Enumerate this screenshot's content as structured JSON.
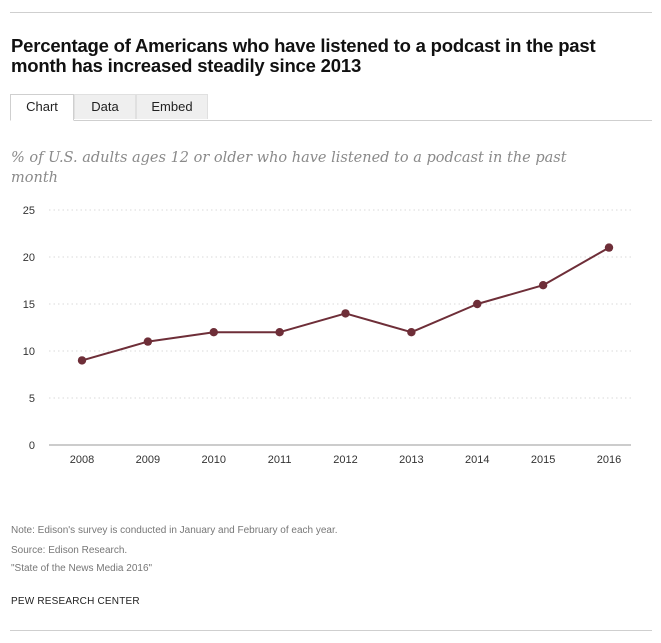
{
  "title": "Percentage of Americans who have listened to a podcast in the past month has increased steadily since 2013",
  "tabs": [
    {
      "label": "Chart",
      "active": true
    },
    {
      "label": "Data",
      "active": false
    },
    {
      "label": "Embed",
      "active": false
    }
  ],
  "chart_data": {
    "type": "line",
    "subtitle": "% of U.S. adults ages 12 or older who have listened to a podcast in the past month",
    "categories": [
      "2008",
      "2009",
      "2010",
      "2011",
      "2012",
      "2013",
      "2014",
      "2015",
      "2016"
    ],
    "series": [
      {
        "values": [
          9,
          11,
          12,
          12,
          14,
          12,
          15,
          17,
          21
        ]
      }
    ],
    "ylim": [
      0,
      25
    ],
    "yticks": [
      0,
      5,
      10,
      15,
      20,
      25
    ],
    "grid": true,
    "line_color": "#6e2e38",
    "grid_color": "#d9d9d9",
    "axis_color": "#9a9a9a"
  },
  "footnotes": {
    "note": "Note: Edison's survey is conducted in January and February of each year.",
    "source": "Source: Edison Research.",
    "report": "\"State of the News Media 2016\""
  },
  "brand": "PEW RESEARCH CENTER"
}
